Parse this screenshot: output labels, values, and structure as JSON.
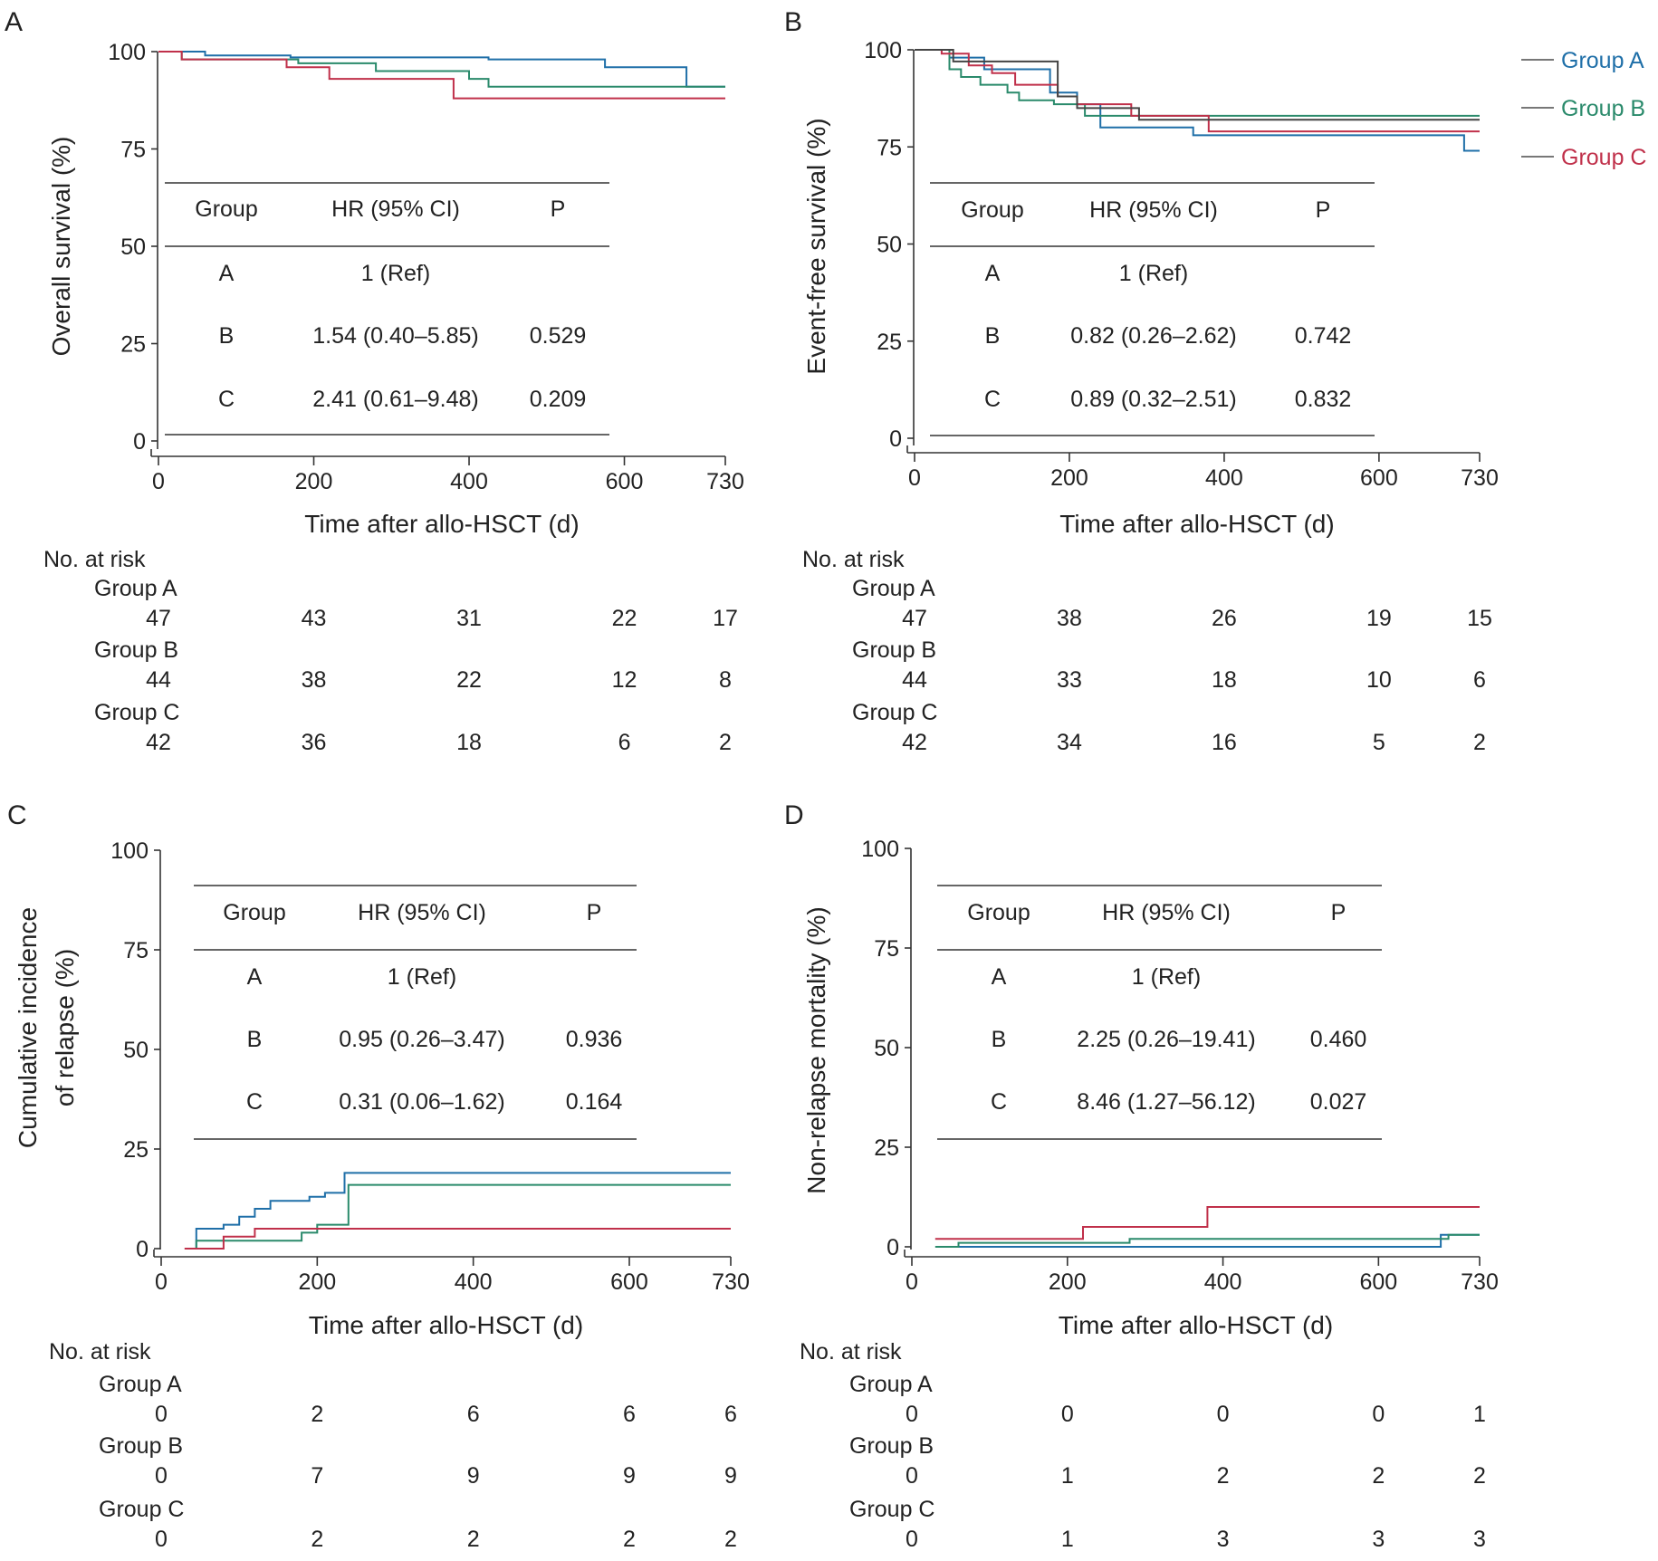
{
  "legend": [
    {
      "name": "Group A",
      "color": "#1f6fa8"
    },
    {
      "name": "Group B",
      "color": "#2a8a6b"
    },
    {
      "name": "Group C",
      "color": "#c0304a"
    }
  ],
  "risk_header": "No. at risk",
  "table_header": {
    "group": "Group",
    "hr": "HR (95% CI)",
    "p": "P"
  },
  "xlabel": "Time after allo-HSCT (d)",
  "chart_data": [
    {
      "panel": "A",
      "type": "line",
      "ylabel": [
        "Overall survival (%)"
      ],
      "xlabel": "Time after allo-HSCT (d)",
      "xticks": [
        0,
        200,
        400,
        600,
        730
      ],
      "yticks": [
        0,
        25,
        50,
        75,
        100
      ],
      "xlim": [
        0,
        730
      ],
      "ylim": [
        0,
        100
      ],
      "series": [
        {
          "name": "Group A",
          "color": "#1f6fa8",
          "points": [
            [
              0,
              100
            ],
            [
              60,
              100
            ],
            [
              60,
              99
            ],
            [
              170,
              99
            ],
            [
              170,
              98.5
            ],
            [
              425,
              98.5
            ],
            [
              425,
              98
            ],
            [
              575,
              98
            ],
            [
              575,
              96
            ],
            [
              680,
              96
            ],
            [
              680,
              91
            ],
            [
              730,
              91
            ]
          ]
        },
        {
          "name": "Group B",
          "color": "#2a8a6b",
          "points": [
            [
              0,
              100
            ],
            [
              30,
              100
            ],
            [
              30,
              98
            ],
            [
              180,
              98
            ],
            [
              180,
              97
            ],
            [
              280,
              97
            ],
            [
              280,
              95
            ],
            [
              400,
              95
            ],
            [
              400,
              93
            ],
            [
              425,
              93
            ],
            [
              425,
              91
            ],
            [
              730,
              91
            ]
          ]
        },
        {
          "name": "Group C",
          "color": "#c0304a",
          "points": [
            [
              0,
              100
            ],
            [
              30,
              100
            ],
            [
              30,
              98
            ],
            [
              165,
              98
            ],
            [
              165,
              96
            ],
            [
              220,
              96
            ],
            [
              220,
              93
            ],
            [
              380,
              93
            ],
            [
              380,
              88
            ],
            [
              730,
              88
            ]
          ]
        }
      ],
      "hr_table": [
        {
          "group": "A",
          "hr": "1 (Ref)",
          "p": ""
        },
        {
          "group": "B",
          "hr": "1.54 (0.40–5.85)",
          "p": "0.529"
        },
        {
          "group": "C",
          "hr": "2.41 (0.61–9.48)",
          "p": "0.209"
        }
      ],
      "risk": [
        {
          "name": "Group A",
          "values": [
            "47",
            "43",
            "31",
            "22",
            "17"
          ]
        },
        {
          "name": "Group B",
          "values": [
            "44",
            "38",
            "22",
            "12",
            "8"
          ]
        },
        {
          "name": "Group C",
          "values": [
            "42",
            "36",
            "18",
            "6",
            "2"
          ]
        }
      ]
    },
    {
      "panel": "B",
      "type": "line",
      "ylabel": [
        "Event-free survival (%)"
      ],
      "xlabel": "Time after allo-HSCT (d)",
      "xticks": [
        0,
        200,
        400,
        600,
        730
      ],
      "yticks": [
        0,
        25,
        50,
        75,
        100
      ],
      "xlim": [
        0,
        730
      ],
      "ylim": [
        0,
        100
      ],
      "series": [
        {
          "name": "Group A",
          "color": "#1f6fa8",
          "points": [
            [
              0,
              100
            ],
            [
              45,
              100
            ],
            [
              45,
              98
            ],
            [
              90,
              98
            ],
            [
              90,
              95
            ],
            [
              175,
              95
            ],
            [
              175,
              89
            ],
            [
              210,
              89
            ],
            [
              210,
              86
            ],
            [
              240,
              86
            ],
            [
              240,
              80
            ],
            [
              360,
              80
            ],
            [
              360,
              78
            ],
            [
              710,
              78
            ],
            [
              710,
              74
            ],
            [
              730,
              74
            ]
          ]
        },
        {
          "name": "Group B",
          "color": "#2a8a6b",
          "points": [
            [
              0,
              100
            ],
            [
              45,
              100
            ],
            [
              45,
              95
            ],
            [
              60,
              95
            ],
            [
              60,
              93
            ],
            [
              85,
              93
            ],
            [
              85,
              91
            ],
            [
              120,
              91
            ],
            [
              120,
              89
            ],
            [
              135,
              89
            ],
            [
              135,
              87
            ],
            [
              180,
              87
            ],
            [
              180,
              86
            ],
            [
              220,
              86
            ],
            [
              220,
              83
            ],
            [
              730,
              83
            ]
          ]
        },
        {
          "name": "Group C",
          "color": "#c0304a",
          "points": [
            [
              0,
              100
            ],
            [
              35,
              100
            ],
            [
              35,
              99
            ],
            [
              70,
              99
            ],
            [
              70,
              96
            ],
            [
              100,
              96
            ],
            [
              100,
              94
            ],
            [
              130,
              94
            ],
            [
              130,
              91
            ],
            [
              185,
              91
            ],
            [
              185,
              88
            ],
            [
              210,
              88
            ],
            [
              210,
              86
            ],
            [
              280,
              86
            ],
            [
              280,
              83
            ],
            [
              380,
              83
            ],
            [
              380,
              79
            ],
            [
              730,
              79
            ]
          ]
        },
        {
          "name": "overlay",
          "color": "#444444",
          "points": [
            [
              0,
              100
            ],
            [
              50,
              100
            ],
            [
              50,
              97
            ],
            [
              185,
              97
            ],
            [
              185,
              88
            ],
            [
              210,
              88
            ],
            [
              210,
              85
            ],
            [
              290,
              85
            ],
            [
              290,
              82
            ],
            [
              730,
              82
            ]
          ]
        }
      ],
      "hr_table": [
        {
          "group": "A",
          "hr": "1 (Ref)",
          "p": ""
        },
        {
          "group": "B",
          "hr": "0.82 (0.26–2.62)",
          "p": "0.742"
        },
        {
          "group": "C",
          "hr": "0.89 (0.32–2.51)",
          "p": "0.832"
        }
      ],
      "risk": [
        {
          "name": "Group A",
          "values": [
            "47",
            "38",
            "26",
            "19",
            "15"
          ]
        },
        {
          "name": "Group B",
          "values": [
            "44",
            "33",
            "18",
            "10",
            "6"
          ]
        },
        {
          "name": "Group C",
          "values": [
            "42",
            "34",
            "16",
            "5",
            "2"
          ]
        }
      ]
    },
    {
      "panel": "C",
      "type": "line",
      "ylabel": [
        "Cumulative incidence",
        "of relapse (%)"
      ],
      "xlabel": "Time after allo-HSCT (d)",
      "xticks": [
        0,
        200,
        400,
        600,
        730
      ],
      "yticks": [
        0,
        25,
        50,
        75,
        100
      ],
      "xlim": [
        0,
        730
      ],
      "ylim": [
        0,
        100
      ],
      "series": [
        {
          "name": "Group A",
          "color": "#1f6fa8",
          "points": [
            [
              45,
              0
            ],
            [
              45,
              5
            ],
            [
              80,
              5
            ],
            [
              80,
              6
            ],
            [
              100,
              6
            ],
            [
              100,
              8
            ],
            [
              120,
              8
            ],
            [
              120,
              10
            ],
            [
              140,
              10
            ],
            [
              140,
              12
            ],
            [
              190,
              12
            ],
            [
              190,
              13
            ],
            [
              210,
              13
            ],
            [
              210,
              14
            ],
            [
              235,
              14
            ],
            [
              235,
              19
            ],
            [
              730,
              19
            ]
          ]
        },
        {
          "name": "Group B",
          "color": "#2a8a6b",
          "points": [
            [
              45,
              0
            ],
            [
              45,
              2
            ],
            [
              180,
              2
            ],
            [
              180,
              4
            ],
            [
              200,
              4
            ],
            [
              200,
              6
            ],
            [
              240,
              6
            ],
            [
              240,
              16
            ],
            [
              730,
              16
            ]
          ]
        },
        {
          "name": "Group C",
          "color": "#c0304a",
          "points": [
            [
              30,
              0
            ],
            [
              80,
              0
            ],
            [
              80,
              3
            ],
            [
              120,
              3
            ],
            [
              120,
              5
            ],
            [
              730,
              5
            ]
          ]
        }
      ],
      "hr_table": [
        {
          "group": "A",
          "hr": "1 (Ref)",
          "p": ""
        },
        {
          "group": "B",
          "hr": "0.95 (0.26–3.47)",
          "p": "0.936"
        },
        {
          "group": "C",
          "hr": "0.31 (0.06–1.62)",
          "p": "0.164"
        }
      ],
      "risk": [
        {
          "name": "Group A",
          "values": [
            "0",
            "2",
            "6",
            "6",
            "6"
          ]
        },
        {
          "name": "Group B",
          "values": [
            "0",
            "7",
            "9",
            "9",
            "9"
          ]
        },
        {
          "name": "Group C",
          "values": [
            "0",
            "2",
            "2",
            "2",
            "2"
          ]
        }
      ]
    },
    {
      "panel": "D",
      "type": "line",
      "ylabel": [
        "Non-relapse mortality (%)"
      ],
      "xlabel": "Time after allo-HSCT (d)",
      "xticks": [
        0,
        200,
        400,
        600,
        730
      ],
      "yticks": [
        0,
        25,
        50,
        75,
        100
      ],
      "xlim": [
        0,
        730
      ],
      "ylim": [
        0,
        100
      ],
      "series": [
        {
          "name": "Group A",
          "color": "#1f6fa8",
          "points": [
            [
              60,
              0
            ],
            [
              680,
              0
            ],
            [
              680,
              3
            ],
            [
              730,
              3
            ]
          ]
        },
        {
          "name": "Group B",
          "color": "#2a8a6b",
          "points": [
            [
              30,
              0
            ],
            [
              60,
              0
            ],
            [
              60,
              1
            ],
            [
              280,
              1
            ],
            [
              280,
              2
            ],
            [
              690,
              2
            ],
            [
              690,
              3
            ],
            [
              730,
              3
            ]
          ]
        },
        {
          "name": "Group C",
          "color": "#c0304a",
          "points": [
            [
              30,
              2
            ],
            [
              220,
              2
            ],
            [
              220,
              5
            ],
            [
              380,
              5
            ],
            [
              380,
              10
            ],
            [
              730,
              10
            ]
          ]
        }
      ],
      "hr_table": [
        {
          "group": "A",
          "hr": "1 (Ref)",
          "p": ""
        },
        {
          "group": "B",
          "hr": "2.25 (0.26–19.41)",
          "p": "0.460"
        },
        {
          "group": "C",
          "hr": "8.46 (1.27–56.12)",
          "p": "0.027"
        }
      ],
      "risk": [
        {
          "name": "Group A",
          "values": [
            "0",
            "0",
            "0",
            "0",
            "1"
          ]
        },
        {
          "name": "Group B",
          "values": [
            "0",
            "1",
            "2",
            "2",
            "2"
          ]
        },
        {
          "name": "Group C",
          "values": [
            "0",
            "1",
            "3",
            "3",
            "3"
          ]
        }
      ]
    }
  ]
}
